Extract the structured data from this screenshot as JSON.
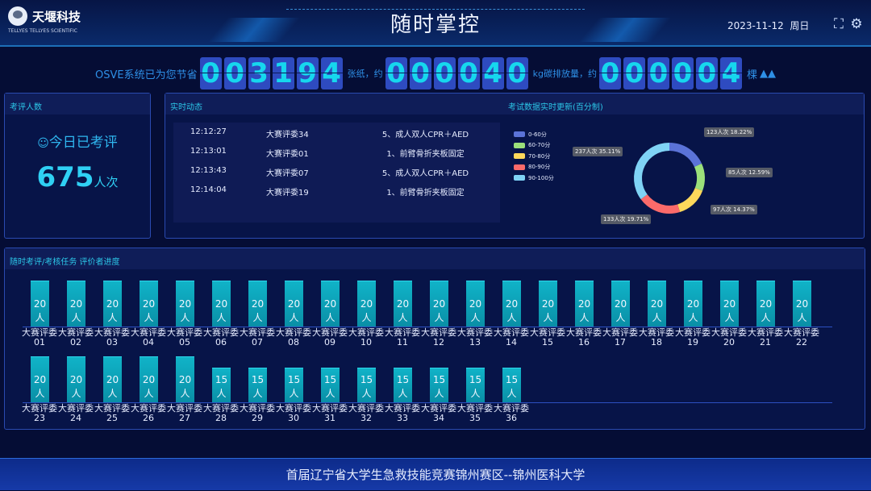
{
  "header": {
    "logo_cn": "天堰科技",
    "logo_en": "TELLYES TELLYES SCIENTIFIC",
    "title": "随时掌控",
    "date": "2023-11-12",
    "weekday": "周日",
    "fullscreen_icon": "fullscreen-icon",
    "settings_icon": "gear-icon"
  },
  "counter": {
    "prefix": "OSVE系统已为您节省",
    "paper_digits": [
      "0",
      "0",
      "3",
      "1",
      "9",
      "4"
    ],
    "paper_unit": "张纸，约",
    "carbon_digits": [
      "0",
      "0",
      "0",
      "0",
      "4",
      "0"
    ],
    "carbon_unit": "kg碳排放量，约",
    "tree_digits": [
      "0",
      "0",
      "0",
      "0",
      "0",
      "4"
    ],
    "tree_unit": "棵",
    "tree_icon": "tree-icon"
  },
  "left_panel": {
    "title": "考评人数",
    "label": "今日已考评",
    "count": "675",
    "unit": "人次",
    "icon": "users-icon"
  },
  "feed": {
    "title": "实时动态",
    "rows": [
      {
        "time": "12:12:27",
        "judge": "大赛评委34",
        "task": "5、成人双人CPR＋AED"
      },
      {
        "time": "12:13:01",
        "judge": "大赛评委01",
        "task": "1、前臂骨折夹板固定"
      },
      {
        "time": "12:13:43",
        "judge": "大赛评委07",
        "task": "5、成人双人CPR＋AED"
      },
      {
        "time": "12:14:04",
        "judge": "大赛评委19",
        "task": "1、前臂骨折夹板固定"
      }
    ]
  },
  "chart_data": [
    {
      "type": "pie",
      "title": "考试数据实时更新(百分制)",
      "legend_position": "left",
      "donut": true,
      "categories": [
        "0-60分",
        "60-70分",
        "70-80分",
        "80-90分",
        "90-100分"
      ],
      "values": [
        123,
        85,
        97,
        133,
        237
      ],
      "labels": [
        "123人次 18.22%",
        "85人次 12.59%",
        "97人次 14.37%",
        "133人次 19.71%",
        "237人次 35.11%"
      ],
      "colors": [
        "#5b73d8",
        "#9be07a",
        "#fdd85b",
        "#fb6a6a",
        "#7fd3f5"
      ]
    },
    {
      "type": "bar",
      "title": "随时考评/考核任务 评价者进度",
      "unit": "人",
      "categories": [
        "大赛评委01",
        "大赛评委02",
        "大赛评委03",
        "大赛评委04",
        "大赛评委05",
        "大赛评委06",
        "大赛评委07",
        "大赛评委08",
        "大赛评委09",
        "大赛评委10",
        "大赛评委11",
        "大赛评委12",
        "大赛评委13",
        "大赛评委14",
        "大赛评委15",
        "大赛评委16",
        "大赛评委17",
        "大赛评委18",
        "大赛评委19",
        "大赛评委20",
        "大赛评委21",
        "大赛评委22",
        "大赛评委23",
        "大赛评委24",
        "大赛评委25",
        "大赛评委26",
        "大赛评委27",
        "大赛评委28",
        "大赛评委29",
        "大赛评委30",
        "大赛评委31",
        "大赛评委32",
        "大赛评委33",
        "大赛评委34",
        "大赛评委35",
        "大赛评委36"
      ],
      "values": [
        20,
        20,
        20,
        20,
        20,
        20,
        20,
        20,
        20,
        20,
        20,
        20,
        20,
        20,
        20,
        20,
        20,
        20,
        20,
        20,
        20,
        20,
        20,
        20,
        20,
        20,
        20,
        15,
        15,
        15,
        15,
        15,
        15,
        15,
        15,
        15
      ],
      "color": "#0fa8c0"
    }
  ],
  "footer": {
    "text": "首届辽宁省大学生急救技能竞赛锦州赛区--锦州医科大学"
  }
}
